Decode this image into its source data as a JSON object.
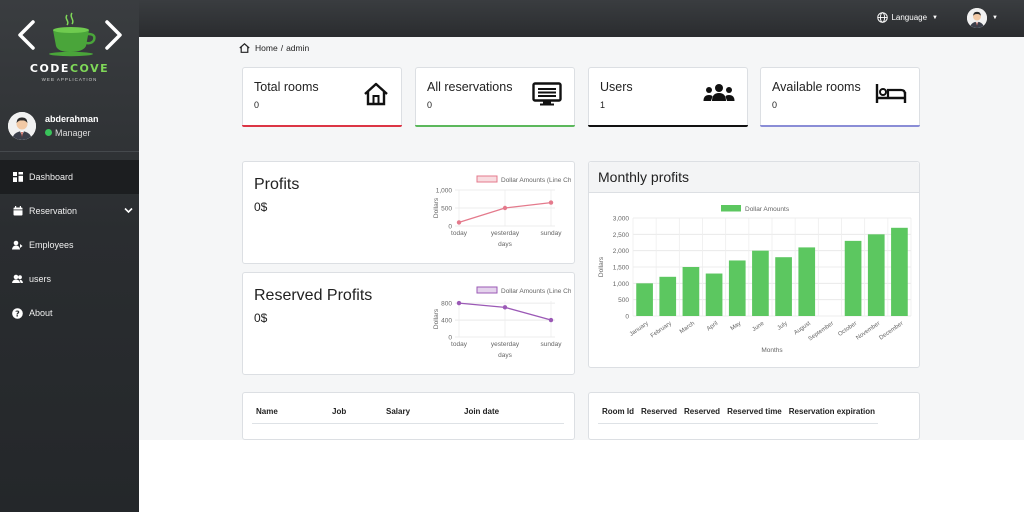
{
  "brand": {
    "name_part1": "CODE",
    "name_part2": "COVE",
    "sub": "WEB APPLICATION"
  },
  "profile": {
    "name": "abderahman",
    "role": "Manager"
  },
  "nav": [
    {
      "label": "Dashboard",
      "icon": "dashboard-icon",
      "active": true
    },
    {
      "label": "Reservation",
      "icon": "calendar-icon",
      "expandable": true
    },
    {
      "label": "Employees",
      "icon": "employees-icon"
    },
    {
      "label": "users",
      "icon": "users-icon"
    },
    {
      "label": "About",
      "icon": "question-circle-icon"
    }
  ],
  "topbar": {
    "language_label": "Language"
  },
  "breadcrumb": {
    "home": "Home",
    "separator": "/",
    "current": "admin"
  },
  "stats": [
    {
      "title": "Total rooms",
      "value": "0",
      "icon": "house-icon",
      "color": "#dc3545"
    },
    {
      "title": "All reservations",
      "value": "0",
      "icon": "list-screen-icon",
      "color": "#5cb85c"
    },
    {
      "title": "Users",
      "value": "1",
      "icon": "people-group-icon",
      "color": "#111111"
    },
    {
      "title": "Available rooms",
      "value": "0",
      "icon": "bed-icon",
      "color": "#8a8dd6"
    }
  ],
  "profits": {
    "title": "Profits",
    "value": "0$"
  },
  "reserved_profits": {
    "title": "Reserved Profits",
    "value": "0$"
  },
  "monthly": {
    "title": "Monthly profits"
  },
  "chart_data": [
    {
      "type": "line",
      "legend": "Dollar Amounts (Line Chart)",
      "x": [
        "today",
        "yesterday",
        "sunday"
      ],
      "y": [
        100,
        500,
        650
      ],
      "ylabel": "Dollars",
      "xlabel": "days",
      "yticks": [
        "0",
        "500",
        "1,000"
      ],
      "ylim": [
        0,
        1000
      ],
      "color": "#e47a8c"
    },
    {
      "type": "line",
      "legend": "Dollar Amounts (Line Chart)",
      "x": [
        "today",
        "yesterday",
        "sunday"
      ],
      "y": [
        800,
        700,
        400
      ],
      "ylabel": "Dollars",
      "xlabel": "days",
      "yticks": [
        "0",
        "400",
        "800"
      ],
      "ylim": [
        0,
        850
      ],
      "color": "#9b59b6"
    },
    {
      "type": "bar",
      "legend": "Dollar Amounts",
      "categories": [
        "January",
        "February",
        "March",
        "April",
        "May",
        "June",
        "July",
        "August",
        "September",
        "October",
        "November",
        "December"
      ],
      "values": [
        1000,
        1200,
        1500,
        1300,
        1700,
        2000,
        1800,
        2100,
        0,
        2300,
        2500,
        2700
      ],
      "ylabel": "Dollars",
      "xlabel": "Months",
      "yticks": [
        "0",
        "500",
        "1,000",
        "1,500",
        "2,000",
        "2,500",
        "3,000"
      ],
      "ylim": [
        0,
        3000
      ],
      "color": "#5cc760"
    }
  ],
  "employees_table": {
    "headers": [
      "Name",
      "Job",
      "Salary",
      "Join date"
    ]
  },
  "rooms_table": {
    "headers": [
      "Room Id",
      "Reserved",
      "Reserved",
      "Reserved time",
      "Reservation expiration"
    ]
  }
}
